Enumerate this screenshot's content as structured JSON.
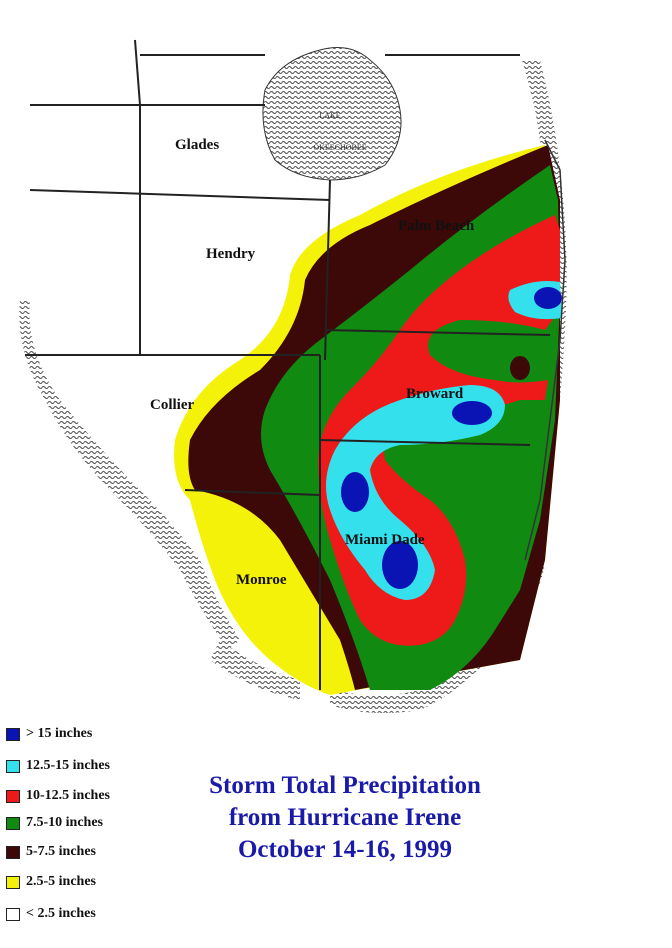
{
  "map": {
    "title_lines": [
      "Storm Total Precipitation",
      "from Hurricane Irene",
      "October 14-16, 1999"
    ],
    "lake_label": "LAKE OKEECHOBEE",
    "counties": {
      "glades": "Glades",
      "hendry": "Hendry",
      "palm_beach": "Palm Beach",
      "collier": "Collier",
      "broward": "Broward",
      "miami_dade": "Miami Dade",
      "monroe": "Monroe"
    },
    "legend": [
      {
        "label": "> 15 inches",
        "color": "#0a14b4"
      },
      {
        "label": "12.5-15 inches",
        "color": "#33e0ec"
      },
      {
        "label": "10-12.5 inches",
        "color": "#ee1a1a"
      },
      {
        "label": "7.5-10 inches",
        "color": "#118a11"
      },
      {
        "label": "5-7.5 inches",
        "color": "#3c0808"
      },
      {
        "label": "2.5-5 inches",
        "color": "#f5f20a"
      },
      {
        "label": "< 2.5 inches",
        "color": "#ffffff"
      }
    ]
  }
}
